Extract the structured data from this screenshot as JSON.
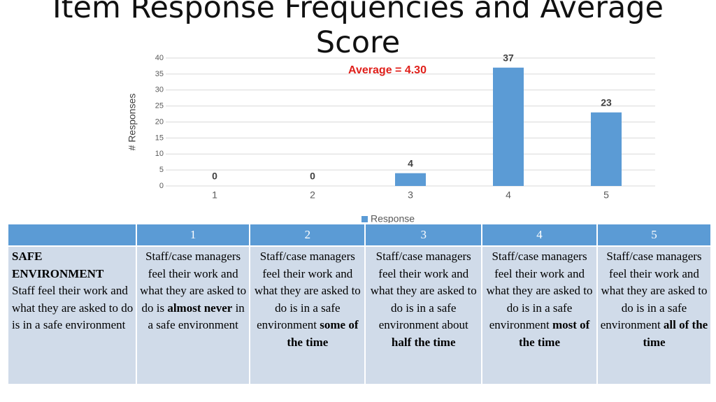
{
  "chart_data": {
    "type": "bar",
    "title": "Item Response Frequencies and Average Score",
    "y_label": "# Responses",
    "annotation": "Average = 4.30",
    "categories": [
      "1",
      "2",
      "3",
      "4",
      "5"
    ],
    "series": [
      {
        "name": "Response",
        "color": "#5b9bd5",
        "values": [
          0,
          0,
          4,
          37,
          23
        ]
      }
    ],
    "ylim": [
      0,
      40
    ],
    "yticks": [
      0,
      5,
      10,
      15,
      20,
      25,
      30,
      35,
      40
    ],
    "grid": true,
    "legend": "bottom"
  },
  "table": {
    "header": [
      "1",
      "2",
      "3",
      "4",
      "5"
    ],
    "row_title": "SAFE ENVIRONMENT",
    "row_text": "Staff feel their work and what they are asked to do is in a safe environment",
    "cells": [
      [
        {
          "text": "Staff/case managers feel their work and what they are asked to do is "
        },
        {
          "text": "almost never",
          "bold": true
        },
        {
          "text": " in a safe environment"
        }
      ],
      [
        {
          "text": "Staff/case managers feel their work and what they are asked to do is in a safe environment "
        },
        {
          "text": "some of the time",
          "bold": true
        }
      ],
      [
        {
          "text": "Staff/case managers feel their work and what they are asked to do is in a safe environment about "
        },
        {
          "text": "half the time",
          "bold": true
        }
      ],
      [
        {
          "text": "Staff/case managers feel their work and what they are asked to do is in a safe environment "
        },
        {
          "text": "most of the time",
          "bold": true
        }
      ],
      [
        {
          "text": "Staff/case managers feel their work and what they are asked to do is in a safe environment "
        },
        {
          "text": "all of the time",
          "bold": true
        }
      ]
    ]
  }
}
